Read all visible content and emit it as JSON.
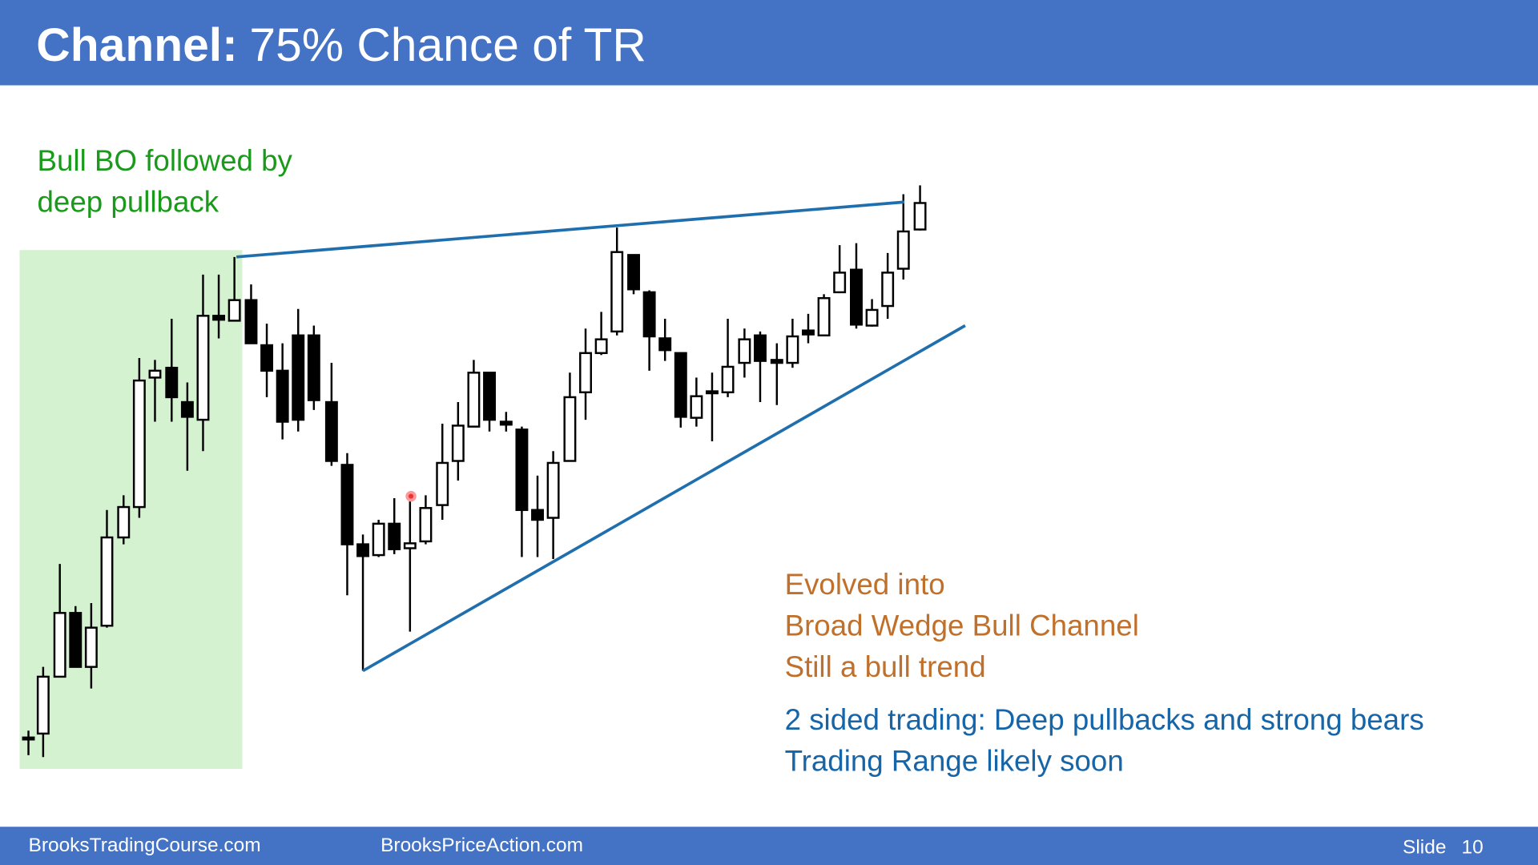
{
  "header": {
    "title_bold": "Channel:",
    "title_rest": "75% Chance of TR"
  },
  "annotations": {
    "green": [
      "Bull BO followed by",
      "deep pullback"
    ],
    "orange": [
      "Evolved into",
      "Broad Wedge Bull Channel",
      "Still a bull trend"
    ],
    "blue": [
      "2 sided trading: Deep pullbacks and strong bears",
      "Trading Range likely soon"
    ]
  },
  "footer": {
    "left": "BrooksTradingCourse.com",
    "middle": "BrooksPriceAction.com",
    "slide_label": "Slide",
    "slide_number": 10
  }
}
